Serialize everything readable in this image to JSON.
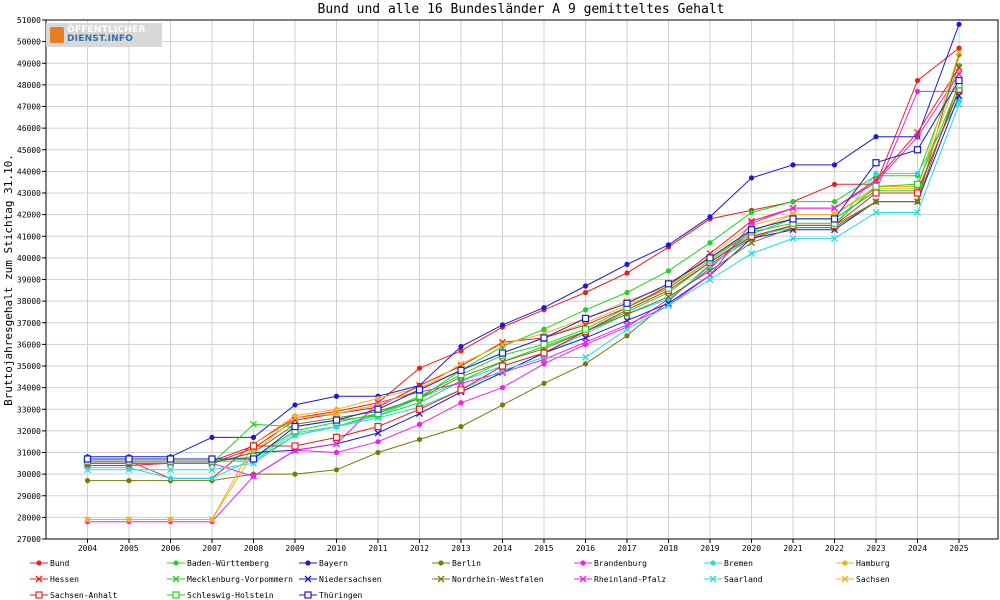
{
  "site_logo": {
    "line1": "ÖFFENTLICHER",
    "line2": "DIENST.INFO"
  },
  "chart_data": {
    "type": "line",
    "title": "Bund und alle 16 Bundesländer A 9 gemitteltes Gehalt",
    "xlabel": "",
    "ylabel": "Bruttojahresgehalt zum Stichtag 31.10.",
    "grid": true,
    "legend_position": "bottom",
    "ylim": [
      27000,
      51000
    ],
    "yticks": [
      27000,
      28000,
      29000,
      30000,
      31000,
      32000,
      33000,
      34000,
      35000,
      36000,
      37000,
      38000,
      39000,
      40000,
      41000,
      42000,
      43000,
      44000,
      45000,
      46000,
      47000,
      48000,
      49000,
      50000,
      51000
    ],
    "categories": [
      "2004",
      "2005",
      "2006",
      "2007",
      "2008",
      "2009",
      "2010",
      "2011",
      "2012",
      "2013",
      "2014",
      "2015",
      "2016",
      "2017",
      "2018",
      "2019",
      "2020",
      "2021",
      "2022",
      "2023",
      "2024",
      "2025"
    ],
    "series": [
      {
        "name": "Bund",
        "color": "#e8201e",
        "marker": "dot",
        "values": [
          30600,
          30600,
          29800,
          29800,
          31400,
          32600,
          32900,
          33300,
          34900,
          35700,
          36800,
          37600,
          38400,
          39300,
          40500,
          41800,
          42200,
          42600,
          43400,
          43400,
          48200,
          49700
        ]
      },
      {
        "name": "Baden-Württemberg",
        "color": "#20d320",
        "marker": "dot",
        "values": [
          30600,
          30600,
          30600,
          30600,
          30600,
          31800,
          32200,
          32800,
          33500,
          34800,
          35900,
          36700,
          37600,
          38400,
          39400,
          40700,
          42100,
          42600,
          42600,
          43800,
          43800,
          48900
        ]
      },
      {
        "name": "Bayern",
        "color": "#1a1ad6",
        "marker": "dot",
        "values": [
          30800,
          30800,
          30800,
          31700,
          31700,
          33200,
          33600,
          33600,
          34100,
          35900,
          36900,
          37700,
          38700,
          39700,
          40600,
          41900,
          43700,
          44300,
          44300,
          45600,
          45600,
          50800
        ]
      },
      {
        "name": "Berlin",
        "color": "#7a7a0c",
        "marker": "dot",
        "values": [
          29700,
          29700,
          29700,
          29700,
          30000,
          30000,
          30200,
          31000,
          31600,
          32200,
          33200,
          34200,
          35100,
          36400,
          38000,
          39700,
          40900,
          41500,
          41500,
          42600,
          42600,
          49400
        ]
      },
      {
        "name": "Brandenburg",
        "color": "#ee20ee",
        "marker": "dot",
        "values": [
          27800,
          27800,
          27800,
          27800,
          29900,
          31100,
          31000,
          31500,
          32300,
          33300,
          34000,
          35100,
          36000,
          36800,
          38100,
          39500,
          41300,
          41800,
          41800,
          43100,
          47700,
          47700
        ]
      },
      {
        "name": "Bremen",
        "color": "#20dede",
        "marker": "dot",
        "values": [
          30300,
          30300,
          29800,
          29800,
          30700,
          31900,
          32200,
          32700,
          33500,
          34300,
          35000,
          35600,
          36500,
          37400,
          38100,
          39600,
          41000,
          41400,
          41400,
          43900,
          43900,
          47300
        ]
      },
      {
        "name": "Hamburg",
        "color": "#f0b020",
        "marker": "dot",
        "values": [
          27900,
          27900,
          27900,
          27900,
          31400,
          32700,
          33000,
          33500,
          34000,
          34800,
          35600,
          36300,
          37000,
          37800,
          38600,
          40100,
          41500,
          42000,
          42000,
          43300,
          43300,
          48600
        ]
      },
      {
        "name": "Hessen",
        "color": "#e8201e",
        "marker": "x",
        "values": [
          30400,
          30400,
          30500,
          30500,
          31200,
          32500,
          32800,
          33100,
          34100,
          35000,
          36100,
          36300,
          36900,
          37700,
          38700,
          40200,
          41700,
          42300,
          42300,
          43600,
          45800,
          48800
        ]
      },
      {
        "name": "Mecklenburg-Vorpommern",
        "color": "#20d320",
        "marker": "x",
        "values": [
          30500,
          30500,
          30500,
          30500,
          32300,
          32200,
          32500,
          32700,
          33300,
          34300,
          35200,
          35900,
          36600,
          37500,
          38400,
          39800,
          41100,
          41800,
          41800,
          43100,
          43100,
          47700
        ]
      },
      {
        "name": "Niedersachsen",
        "color": "#1a1ad6",
        "marker": "x",
        "values": [
          30500,
          30500,
          30500,
          30500,
          31000,
          31100,
          31400,
          31900,
          32800,
          33800,
          34700,
          35600,
          36300,
          37100,
          37900,
          39200,
          40900,
          41300,
          41300,
          42600,
          42600,
          47500
        ]
      },
      {
        "name": "Nordrhein-Westfalen",
        "color": "#7a7a0c",
        "marker": "x",
        "values": [
          30500,
          30500,
          30500,
          30500,
          31000,
          32300,
          32600,
          32900,
          33500,
          34500,
          35200,
          35800,
          36600,
          37400,
          38200,
          39400,
          40700,
          41400,
          41400,
          42600,
          42600,
          48100
        ]
      },
      {
        "name": "Rheinland-Pfalz",
        "color": "#ee20ee",
        "marker": "x",
        "values": [
          30500,
          30500,
          30500,
          30500,
          29900,
          31100,
          31400,
          33300,
          33800,
          34200,
          34700,
          35300,
          36100,
          36900,
          37800,
          39200,
          41600,
          42300,
          42300,
          43500,
          45600,
          48500
        ]
      },
      {
        "name": "Saarland",
        "color": "#20dede",
        "marker": "x",
        "values": [
          30200,
          30200,
          30200,
          30200,
          30500,
          31800,
          32200,
          32600,
          33100,
          33900,
          34800,
          35400,
          35400,
          36700,
          37800,
          39000,
          40200,
          40900,
          40900,
          42100,
          42100,
          47100
        ]
      },
      {
        "name": "Sachsen",
        "color": "#f0b020",
        "marker": "x",
        "values": [
          27900,
          27900,
          27900,
          27900,
          31000,
          32600,
          32800,
          33200,
          33900,
          35100,
          36000,
          36500,
          37200,
          38000,
          38700,
          40000,
          41200,
          42000,
          42000,
          43200,
          43200,
          49500
        ]
      },
      {
        "name": "Sachsen-Anhalt",
        "color": "#e8201e",
        "marker": "square",
        "values": [
          30600,
          30600,
          30600,
          30600,
          31300,
          31300,
          31700,
          32200,
          33000,
          33900,
          35000,
          35600,
          36600,
          37600,
          38500,
          39800,
          41000,
          41500,
          41500,
          43000,
          43000,
          47800
        ]
      },
      {
        "name": "Schleswig-Holstein",
        "color": "#20d320",
        "marker": "square",
        "values": [
          30600,
          30600,
          30600,
          30600,
          30800,
          32000,
          32400,
          32800,
          33600,
          34600,
          35500,
          36000,
          36700,
          37700,
          38600,
          39900,
          41200,
          41600,
          41600,
          43300,
          43400,
          48000
        ]
      },
      {
        "name": "Thüringen",
        "color": "#1a1ad6",
        "marker": "square",
        "values": [
          30700,
          30700,
          30700,
          30700,
          30700,
          32200,
          32500,
          33000,
          33900,
          34800,
          35600,
          36300,
          37200,
          37900,
          38800,
          40000,
          41300,
          41800,
          41800,
          44400,
          45000,
          48200
        ]
      }
    ]
  }
}
